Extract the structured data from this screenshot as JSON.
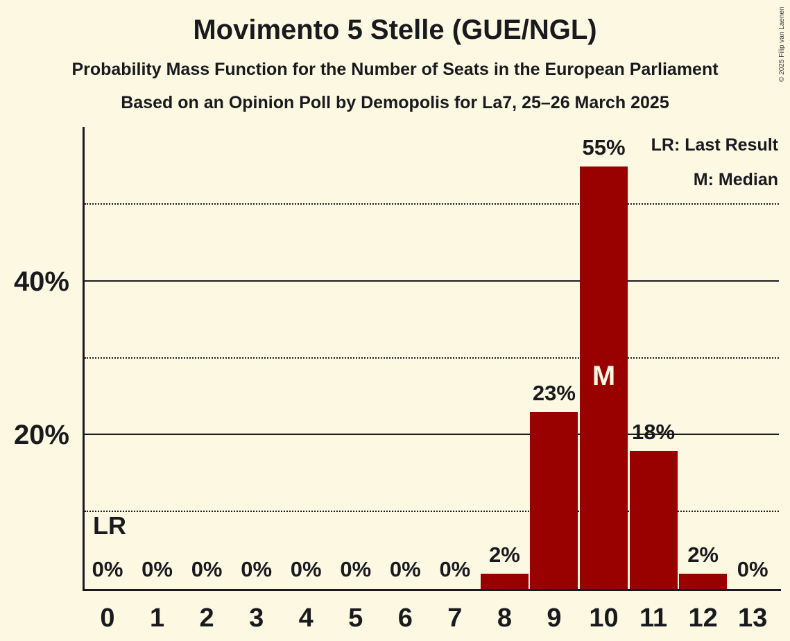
{
  "header": {
    "title": "Movimento 5 Stelle (GUE/NGL)",
    "subtitle1": "Probability Mass Function for the Number of Seats in the European Parliament",
    "subtitle2": "Based on an Opinion Poll by Demopolis for La7, 25–26 March 2025"
  },
  "legend": {
    "lr": "LR: Last Result",
    "m": "M: Median"
  },
  "copyright": "© 2025 Filip van Laenen",
  "colors": {
    "background": "#fcf8e2",
    "bar": "#990000",
    "text": "#191a1e",
    "median_letter": "#fcf8e2"
  },
  "chart_data": {
    "type": "bar",
    "title": "Movimento 5 Stelle (GUE/NGL)",
    "subtitle1": "Probability Mass Function for the Number of Seats in the European Parliament",
    "subtitle2": "Based on an Opinion Poll by Demopolis for La7, 25–26 March 2025",
    "xlabel": "",
    "ylabel": "",
    "categories": [
      0,
      1,
      2,
      3,
      4,
      5,
      6,
      7,
      8,
      9,
      10,
      11,
      12,
      13
    ],
    "values": [
      0,
      0,
      0,
      0,
      0,
      0,
      0,
      0,
      2,
      23,
      55,
      18,
      2,
      0
    ],
    "labels": [
      "0%",
      "0%",
      "0%",
      "0%",
      "0%",
      "0%",
      "0%",
      "0%",
      "2%",
      "23%",
      "55%",
      "18%",
      "2%",
      "0%"
    ],
    "ylim": [
      0,
      60
    ],
    "yticks": [
      {
        "value": 20,
        "label": "20%"
      },
      {
        "value": 40,
        "label": "40%"
      }
    ],
    "gridlines": [
      {
        "value": 10,
        "style": "dotted"
      },
      {
        "value": 20,
        "style": "solid"
      },
      {
        "value": 30,
        "style": "dotted"
      },
      {
        "value": 40,
        "style": "solid"
      },
      {
        "value": 50,
        "style": "dotted"
      }
    ],
    "grid": true,
    "legend_position": "top-right",
    "annotations": {
      "last_result_label": "LR",
      "last_result_seat": 0,
      "median_label": "M",
      "median_seat": 10
    }
  }
}
